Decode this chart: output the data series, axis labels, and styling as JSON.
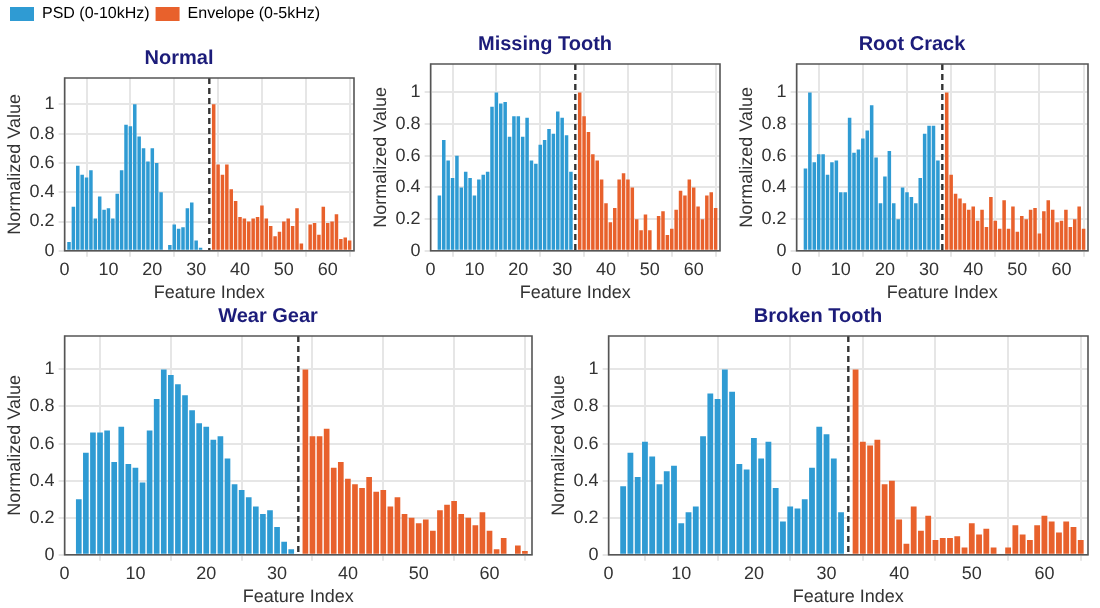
{
  "chart_data": [
    {
      "type": "bar",
      "title": "Normal",
      "xlabel": "Feature Index",
      "ylabel": "Normalized Value",
      "xlim": [
        0,
        66
      ],
      "xticks": [
        0,
        10,
        20,
        30,
        40,
        50,
        60
      ],
      "ylim": [
        0,
        1.18
      ],
      "yticks": [
        0,
        0.2,
        0.4,
        0.6,
        0.8,
        1
      ],
      "grid": true,
      "legend": "top left",
      "ref_lines": [
        {
          "axis": "x",
          "value": 33,
          "color": "#333333",
          "line_style": "dashed"
        }
      ],
      "series": [
        {
          "name": "PSD (0-10kHz)",
          "color": "#2f9bd3",
          "x": [
            1,
            2,
            3,
            4,
            5,
            6,
            7,
            8,
            9,
            10,
            11,
            12,
            13,
            14,
            15,
            16,
            17,
            18,
            19,
            20,
            21,
            22,
            23,
            24,
            25,
            26,
            27,
            28,
            29,
            30,
            31,
            32
          ],
          "values": [
            0.06,
            0.3,
            0.58,
            0.52,
            0.5,
            0.55,
            0.22,
            0.37,
            0.28,
            0.29,
            0.22,
            0.39,
            0.55,
            0.86,
            0.85,
            1,
            0.78,
            0.7,
            0.61,
            0.7,
            0.6,
            0.4,
            0,
            0.04,
            0.18,
            0.15,
            0.16,
            0.29,
            0.33,
            0.07,
            0.02,
            0
          ]
        },
        {
          "name": "Envelope (0-5kHz)",
          "color": "#e8612c",
          "x": [
            34,
            35,
            36,
            37,
            38,
            39,
            40,
            41,
            42,
            43,
            44,
            45,
            46,
            47,
            48,
            49,
            50,
            51,
            52,
            53,
            54,
            55,
            56,
            57,
            58,
            59,
            60,
            61,
            62,
            63,
            64,
            65
          ],
          "values": [
            1,
            0.59,
            0.52,
            0.59,
            0.42,
            0.34,
            0.23,
            0.22,
            0.2,
            0.22,
            0.23,
            0.31,
            0.22,
            0.17,
            0.1,
            0.13,
            0.2,
            0.22,
            0.17,
            0.29,
            0.05,
            0,
            0.18,
            0.19,
            0.11,
            0.3,
            0.19,
            0.2,
            0.25,
            0.08,
            0.09,
            0.07
          ]
        }
      ]
    },
    {
      "type": "bar",
      "title": "Missing Tooth",
      "xlabel": "Feature Index",
      "ylabel": "Normalized Value",
      "xlim": [
        0,
        66
      ],
      "xticks": [
        0,
        10,
        20,
        30,
        40,
        50,
        60
      ],
      "ylim": [
        0,
        1.18
      ],
      "yticks": [
        0,
        0.2,
        0.4,
        0.6,
        0.8,
        1
      ],
      "grid": true,
      "ref_lines": [
        {
          "axis": "x",
          "value": 33,
          "color": "#333333",
          "line_style": "dashed"
        }
      ],
      "series": [
        {
          "color": "#2f9bd3",
          "x": [
            2,
            3,
            4,
            5,
            6,
            7,
            8,
            9,
            10,
            11,
            12,
            13,
            14,
            15,
            16,
            17,
            18,
            19,
            20,
            21,
            22,
            23,
            24,
            25,
            26,
            27,
            28,
            29,
            30,
            31,
            32
          ],
          "values": [
            0.35,
            0.7,
            0.57,
            0.46,
            0.6,
            0.4,
            0.5,
            0.46,
            0.35,
            0.45,
            0.48,
            0.5,
            0.91,
            1,
            0.93,
            0.94,
            0.72,
            0.85,
            0.85,
            0.72,
            0.84,
            0.57,
            0.55,
            0.67,
            0.7,
            0.77,
            0.74,
            0.88,
            0.84,
            0.73,
            0.5
          ]
        },
        {
          "color": "#e8612c",
          "x": [
            34,
            35,
            36,
            37,
            38,
            39,
            40,
            41,
            42,
            43,
            44,
            45,
            46,
            47,
            48,
            49,
            50,
            51,
            52,
            53,
            54,
            55,
            56,
            57,
            58,
            59,
            60,
            61,
            62,
            63,
            64,
            65
          ],
          "values": [
            1,
            0.85,
            0.75,
            0.61,
            0.57,
            0.45,
            0.3,
            0.18,
            0.27,
            0.45,
            0.49,
            0.45,
            0.4,
            0.2,
            0.13,
            0.23,
            0.13,
            0,
            0.22,
            0.25,
            0.1,
            0.14,
            0.26,
            0.38,
            0.35,
            0.45,
            0.4,
            0.28,
            0.2,
            0.35,
            0.37,
            0.27
          ]
        }
      ]
    },
    {
      "type": "bar",
      "title": "Root Crack",
      "xlabel": "Feature Index",
      "ylabel": "Normalized Value",
      "xlim": [
        0,
        66
      ],
      "xticks": [
        0,
        10,
        20,
        30,
        40,
        50,
        60
      ],
      "ylim": [
        0,
        1.18
      ],
      "yticks": [
        0,
        0.2,
        0.4,
        0.6,
        0.8,
        1
      ],
      "grid": true,
      "ref_lines": [
        {
          "axis": "x",
          "value": 33,
          "color": "#333333",
          "line_style": "dashed"
        }
      ],
      "series": [
        {
          "color": "#2f9bd3",
          "x": [
            2,
            3,
            4,
            5,
            6,
            7,
            8,
            9,
            10,
            11,
            12,
            13,
            14,
            15,
            16,
            17,
            18,
            19,
            20,
            21,
            22,
            23,
            24,
            25,
            26,
            27,
            28,
            29,
            30,
            31,
            32
          ],
          "values": [
            0.52,
            1,
            0.56,
            0.61,
            0.61,
            0.48,
            0.56,
            0.57,
            0.37,
            0.37,
            0.84,
            0.62,
            0.64,
            0.71,
            0.76,
            0.92,
            0.59,
            0.3,
            0.47,
            0.63,
            0.3,
            0.2,
            0.4,
            0.37,
            0.34,
            0.3,
            0.46,
            0.74,
            0.79,
            0.79,
            0.57
          ]
        },
        {
          "color": "#e8612c",
          "x": [
            34,
            35,
            36,
            37,
            38,
            39,
            40,
            41,
            42,
            43,
            44,
            45,
            46,
            47,
            48,
            49,
            50,
            51,
            52,
            53,
            54,
            55,
            56,
            57,
            58,
            59,
            60,
            61,
            62,
            63,
            64,
            65
          ],
          "values": [
            1,
            0.48,
            0.36,
            0.33,
            0.3,
            0.26,
            0.28,
            0.19,
            0.26,
            0.15,
            0.34,
            0.19,
            0.14,
            0.32,
            0.14,
            0.28,
            0.12,
            0.22,
            0.2,
            0.26,
            0.27,
            0.11,
            0.25,
            0.32,
            0.26,
            0.18,
            0.19,
            0.26,
            0.15,
            0.2,
            0.28,
            0.14
          ]
        }
      ]
    },
    {
      "type": "bar",
      "title": "Wear Gear",
      "xlabel": "Feature Index",
      "ylabel": "Normalized Value",
      "xlim": [
        0,
        66
      ],
      "xticks": [
        0,
        10,
        20,
        30,
        40,
        50,
        60
      ],
      "ylim": [
        0,
        1.18
      ],
      "yticks": [
        0,
        0.2,
        0.4,
        0.6,
        0.8,
        1
      ],
      "grid": true,
      "ref_lines": [
        {
          "axis": "x",
          "value": 33,
          "color": "#333333",
          "line_style": "dashed"
        }
      ],
      "series": [
        {
          "color": "#2f9bd3",
          "x": [
            2,
            3,
            4,
            5,
            6,
            7,
            8,
            9,
            10,
            11,
            12,
            13,
            14,
            15,
            16,
            17,
            18,
            19,
            20,
            21,
            22,
            23,
            24,
            25,
            26,
            27,
            28,
            29,
            30,
            31,
            32
          ],
          "values": [
            0.3,
            0.55,
            0.66,
            0.66,
            0.67,
            0.5,
            0.69,
            0.49,
            0.47,
            0.39,
            0.67,
            0.84,
            1,
            0.97,
            0.92,
            0.86,
            0.78,
            0.71,
            0.69,
            0.62,
            0.64,
            0.52,
            0.38,
            0.35,
            0.31,
            0.26,
            0.22,
            0.24,
            0.15,
            0.07,
            0.03
          ]
        },
        {
          "color": "#e8612c",
          "x": [
            34,
            35,
            36,
            37,
            38,
            39,
            40,
            41,
            42,
            43,
            44,
            45,
            46,
            47,
            48,
            49,
            50,
            51,
            52,
            53,
            54,
            55,
            56,
            57,
            58,
            59,
            60,
            61,
            62,
            63,
            64,
            65
          ],
          "values": [
            1,
            0.64,
            0.64,
            0.68,
            0.47,
            0.5,
            0.41,
            0.38,
            0.36,
            0.42,
            0.34,
            0.35,
            0.26,
            0.31,
            0.22,
            0.2,
            0.17,
            0.19,
            0.13,
            0.24,
            0.27,
            0.29,
            0.22,
            0.2,
            0.16,
            0.23,
            0.13,
            0.03,
            0.09,
            null,
            0.05,
            0.02
          ]
        }
      ]
    },
    {
      "type": "bar",
      "title": "Broken Tooth",
      "xlabel": "Feature Index",
      "ylabel": "Normalized Value",
      "xlim": [
        0,
        66
      ],
      "xticks": [
        0,
        10,
        20,
        30,
        40,
        50,
        60
      ],
      "ylim": [
        0,
        1.18
      ],
      "yticks": [
        0,
        0.2,
        0.4,
        0.6,
        0.8,
        1
      ],
      "grid": true,
      "ref_lines": [
        {
          "axis": "x",
          "value": 33,
          "color": "#333333",
          "line_style": "dashed"
        }
      ],
      "series": [
        {
          "color": "#2f9bd3",
          "x": [
            2,
            3,
            4,
            5,
            6,
            7,
            8,
            9,
            10,
            11,
            12,
            13,
            14,
            15,
            16,
            17,
            18,
            19,
            20,
            21,
            22,
            23,
            24,
            25,
            26,
            27,
            28,
            29,
            30,
            31,
            32
          ],
          "values": [
            0.37,
            0.55,
            0.42,
            0.61,
            0.53,
            0.38,
            0.45,
            0.48,
            0.17,
            0.23,
            0.26,
            0.64,
            0.87,
            0.84,
            1,
            0.88,
            0.49,
            0.46,
            0.63,
            0.52,
            0.61,
            0.36,
            0.18,
            0.26,
            0.25,
            0.3,
            0.47,
            0.69,
            0.65,
            0.52,
            0.23
          ]
        },
        {
          "color": "#e8612c",
          "x": [
            34,
            35,
            36,
            37,
            38,
            39,
            40,
            41,
            42,
            43,
            44,
            45,
            46,
            47,
            48,
            49,
            50,
            51,
            52,
            53,
            54,
            55,
            56,
            57,
            58,
            59,
            60,
            61,
            62,
            63,
            64,
            65
          ],
          "values": [
            1,
            0.61,
            0.59,
            0.62,
            0.38,
            0.4,
            0.19,
            0.06,
            0.26,
            0.13,
            0.21,
            0.08,
            0.09,
            0.09,
            0.1,
            0.04,
            0.17,
            0.11,
            0.14,
            0.04,
            0,
            0.04,
            0.16,
            0.11,
            0.08,
            0.16,
            0.21,
            0.18,
            0.12,
            0.18,
            0.15,
            0.08
          ]
        }
      ]
    }
  ]
}
